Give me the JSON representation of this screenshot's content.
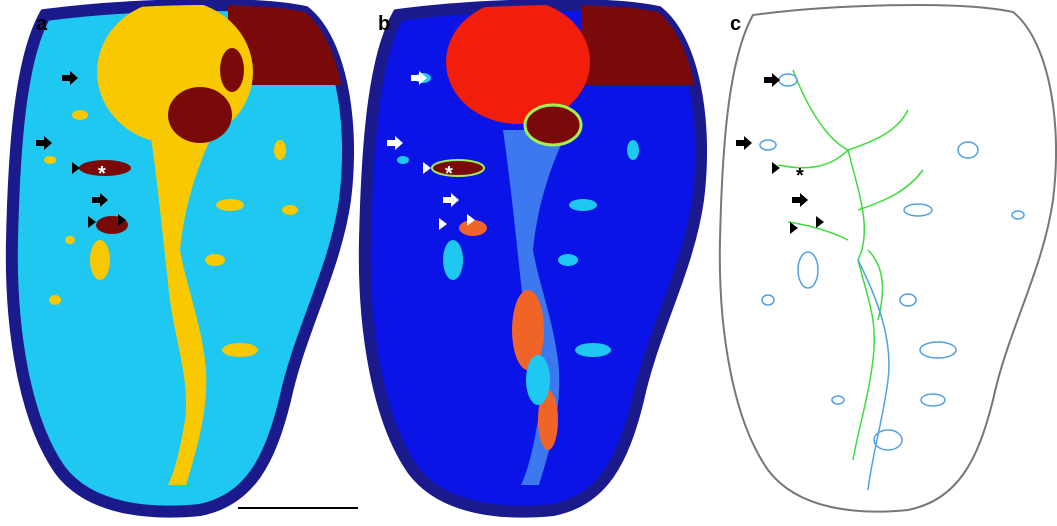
{
  "panels": [
    {
      "label": "a",
      "asterisk": "*"
    },
    {
      "label": "b",
      "asterisk": "*"
    },
    {
      "label": "c",
      "asterisk": "*"
    }
  ]
}
